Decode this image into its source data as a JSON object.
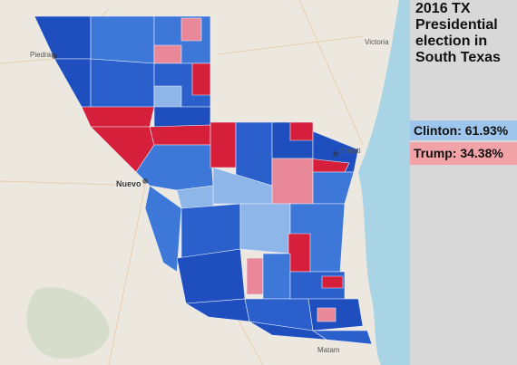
{
  "title_lines": [
    "2016 TX",
    "Presidential",
    "election in",
    "South Texas"
  ],
  "results": {
    "clinton": "Clinton: 61.93%",
    "trump": "Trump: 34.38%"
  },
  "place_labels": {
    "piedras": "Piedras",
    "nuevo": "Nuevo",
    "victoria": "Victoria",
    "christi": "Christi",
    "matamoros": "Matam"
  },
  "colors": {
    "land": "#ece8df",
    "water": "#a8d4e6",
    "dem_dark": "#1f4fbf",
    "dem_mid": "#3d77d8",
    "dem_light": "#8fb6e8",
    "rep_dark": "#d61f3a",
    "rep_light": "#e98898"
  }
}
